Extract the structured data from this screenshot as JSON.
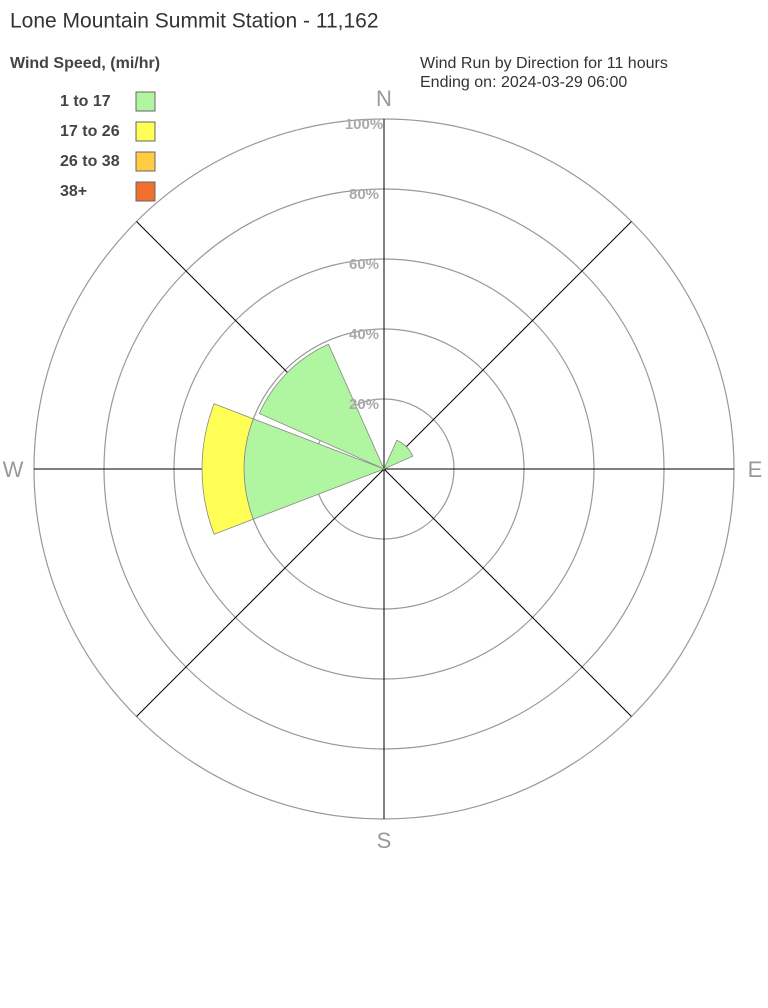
{
  "chart_data": {
    "type": "windrose",
    "title": "Lone Mountain Summit Station - 11,162",
    "legend_title": "Wind Speed, (mi/hr)",
    "subtitle": [
      "Wind Run by Direction for 11 hours",
      "Ending on: 2024-03-29 06:00"
    ],
    "categories": [
      "N",
      null,
      "E",
      null,
      "S",
      null,
      "W",
      null
    ],
    "series": [
      {
        "name": "1 to 17",
        "color": "#b0f5a0",
        "values": [
          0,
          9,
          0,
          0,
          0,
          0,
          40,
          39
        ]
      },
      {
        "name": "17 to 26",
        "color": "#ffff55",
        "values": [
          0,
          0,
          0,
          0,
          0,
          0,
          12,
          0
        ]
      },
      {
        "name": "26 to 38",
        "color": "#ffcc44",
        "values": [
          0,
          0,
          0,
          0,
          0,
          0,
          0,
          0
        ]
      },
      {
        "name": "38+",
        "color": "#f07030",
        "values": [
          0,
          0,
          0,
          0,
          0,
          0,
          0,
          0
        ]
      }
    ],
    "rlim": [
      0,
      100
    ],
    "rticks": [
      {
        "value": 20,
        "label": "20%"
      },
      {
        "value": 40,
        "label": "40%"
      },
      {
        "value": 60,
        "label": "60%"
      },
      {
        "value": 80,
        "label": "80%"
      },
      {
        "value": 100,
        "label": "100%"
      }
    ],
    "grid": true
  }
}
